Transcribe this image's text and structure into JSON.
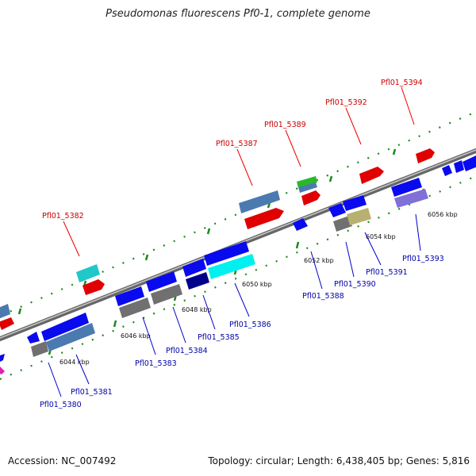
{
  "header": {
    "title": "Pseudomonas fluorescens Pf0-1, complete genome"
  },
  "footer": {
    "accession": "Accession: NC_007492",
    "topology": "Topology: circular; Length: 6,438,405 bp; Genes: 5,816"
  },
  "colors": {
    "forward_label": "#cc0000",
    "reverse_label": "#0000aa",
    "backbone": "#8a8a8a",
    "dots": "#1a8a1a"
  },
  "ticks": [
    "6044 kbp",
    "6046 kbp",
    "6048 kbp",
    "6050 kbp",
    "6052 kbp",
    "6054 kbp",
    "6056 kbp"
  ],
  "forward_labels": [
    "Pfl01_5382",
    "Pfl01_5387",
    "Pfl01_5389",
    "Pfl01_5392",
    "Pfl01_5394"
  ],
  "reverse_labels": [
    "Pfl01_5380",
    "Pfl01_5381",
    "Pfl01_5383",
    "Pfl01_5384",
    "Pfl01_5385",
    "Pfl01_5386",
    "Pfl01_5388",
    "Pfl01_5390",
    "Pfl01_5391",
    "Pfl01_5393"
  ]
}
